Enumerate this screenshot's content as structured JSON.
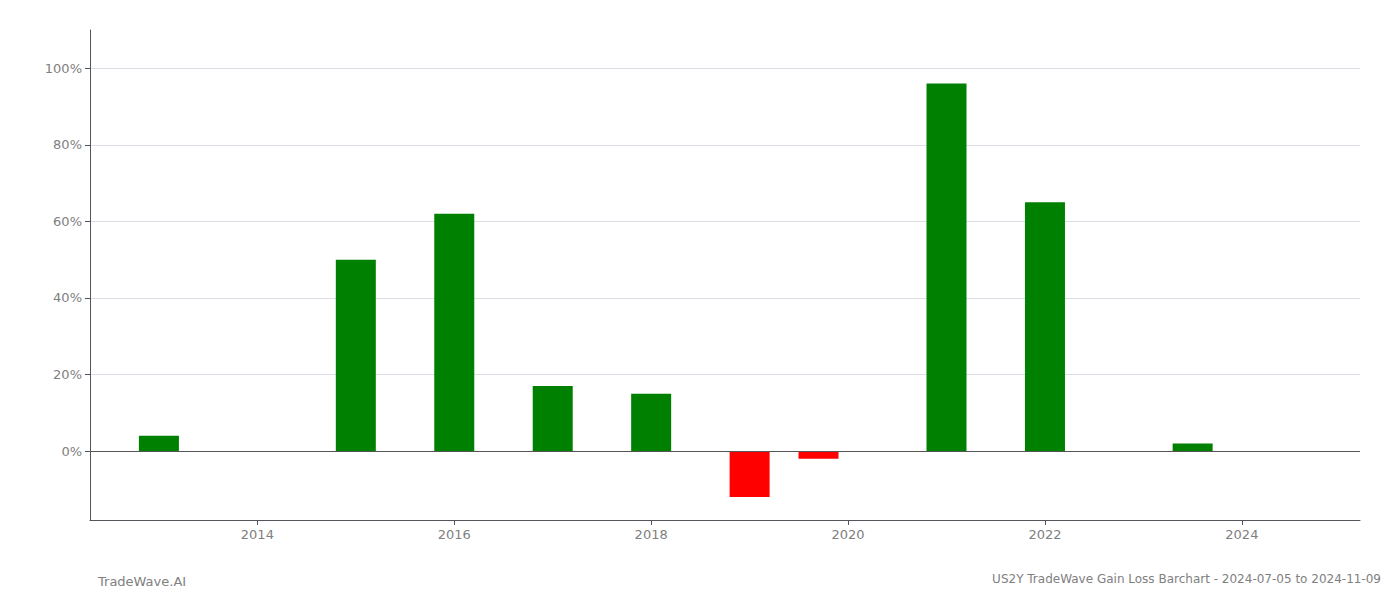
{
  "chart_data": {
    "type": "bar",
    "title": "US2Y TradeWave Gain Loss Barchart - 2024-07-05 to 2024-11-09",
    "annotations": [
      "TradeWave.AI"
    ],
    "x": [
      2013.0,
      2015.0,
      2016.0,
      2017.0,
      2018.0,
      2019.0,
      2019.7,
      2021.0,
      2022.0,
      2023.5
    ],
    "values": [
      0.04,
      0.5,
      0.62,
      0.17,
      0.15,
      -0.12,
      -0.02,
      0.96,
      0.65,
      0.02
    ],
    "colors": [
      "#008000",
      "#008000",
      "#008000",
      "#008000",
      "#008000",
      "#FF0000",
      "#FF0000",
      "#008000",
      "#008000",
      "#008000"
    ],
    "xlim": [
      2012.3,
      2025.2
    ],
    "xticks": [
      2014,
      2016,
      2018,
      2020,
      2022,
      2024
    ],
    "ylim": [
      -0.18,
      1.1
    ],
    "yticks": [
      {
        "value": 0.0,
        "label": "0%"
      },
      {
        "value": 0.2,
        "label": "20%"
      },
      {
        "value": 0.4,
        "label": "40%"
      },
      {
        "value": 0.6,
        "label": "60%"
      },
      {
        "value": 0.8,
        "label": "80%"
      },
      {
        "value": 1.0,
        "label": "100%"
      }
    ],
    "grid": true
  }
}
